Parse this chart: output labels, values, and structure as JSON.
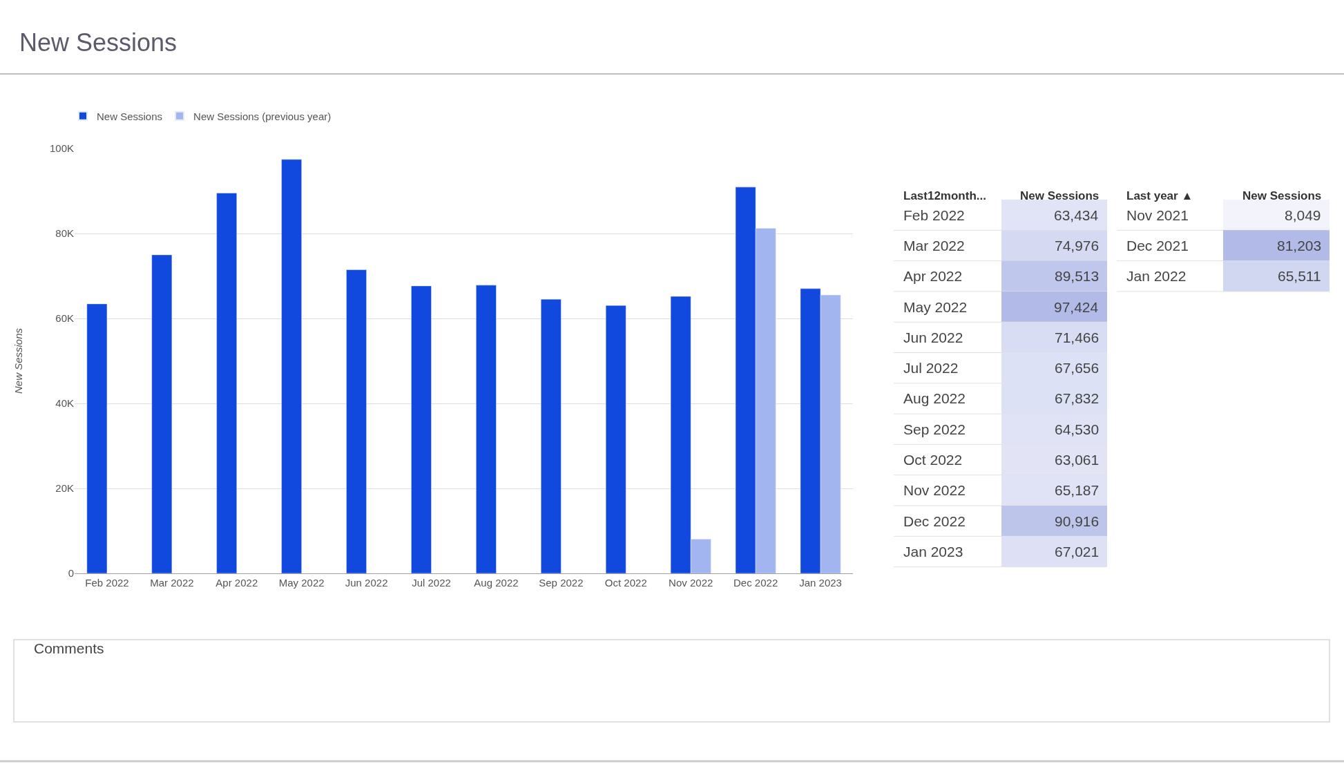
{
  "chart_data": [
    {
      "type": "bar",
      "title": "New Sessions",
      "ylabel": "New Sessions",
      "categories": [
        "Feb 2022",
        "Mar 2022",
        "Apr 2022",
        "May 2022",
        "Jun 2022",
        "Jul 2022",
        "Aug 2022",
        "Sep 2022",
        "Oct 2022",
        "Nov 2022",
        "Dec 2022",
        "Jan 2023"
      ],
      "series": [
        {
          "name": "New Sessions",
          "color": "#1148dd",
          "values": [
            63434,
            74976,
            89513,
            97424,
            71466,
            67656,
            67832,
            64530,
            63061,
            65187,
            90916,
            67021
          ]
        },
        {
          "name": "New Sessions (previous year)",
          "color": "#a3b5f0",
          "values": [
            null,
            null,
            null,
            null,
            null,
            null,
            null,
            null,
            null,
            8049,
            81203,
            65511
          ]
        }
      ],
      "ylim": [
        0,
        100000
      ],
      "yticks": [
        0,
        {
          "value": 20000,
          "label": "20K"
        },
        {
          "value": 40000,
          "label": "40K"
        },
        {
          "value": 60000,
          "label": "60K"
        },
        {
          "value": 80000,
          "label": "80K"
        },
        {
          "value": 100000,
          "label": "100K"
        }
      ],
      "grid": "y",
      "legend": "top left"
    },
    {
      "type": "other",
      "xlabel": "Last12month...",
      "ylabel": "New Sessions",
      "categories": [
        "Feb 2022",
        "Mar 2022",
        "Apr 2022",
        "May 2022",
        "Jun 2022",
        "Jul 2022",
        "Aug 2022",
        "Sep 2022",
        "Oct 2022",
        "Nov 2022",
        "Dec 2022",
        "Jan 2023"
      ],
      "values": [
        63434,
        74976,
        89513,
        97424,
        71466,
        67656,
        67832,
        64530,
        63061,
        65187,
        90916,
        67021
      ],
      "value_labels": [
        "63,434",
        "74,976",
        "89,513",
        "97,424",
        "71,466",
        "67,656",
        "67,832",
        "64,530",
        "63,061",
        "65,187",
        "90,916",
        "67,021"
      ]
    },
    {
      "type": "other",
      "xlabel": "Last year ▲",
      "ylabel": "New Sessions",
      "categories": [
        "Nov 2021",
        "Dec 2021",
        "Jan 2022"
      ],
      "values": [
        8049,
        81203,
        65511
      ],
      "value_labels": [
        "8,049",
        "81,203",
        "65,511"
      ]
    },
    {
      "type": "other",
      "title": "Comments"
    }
  ]
}
